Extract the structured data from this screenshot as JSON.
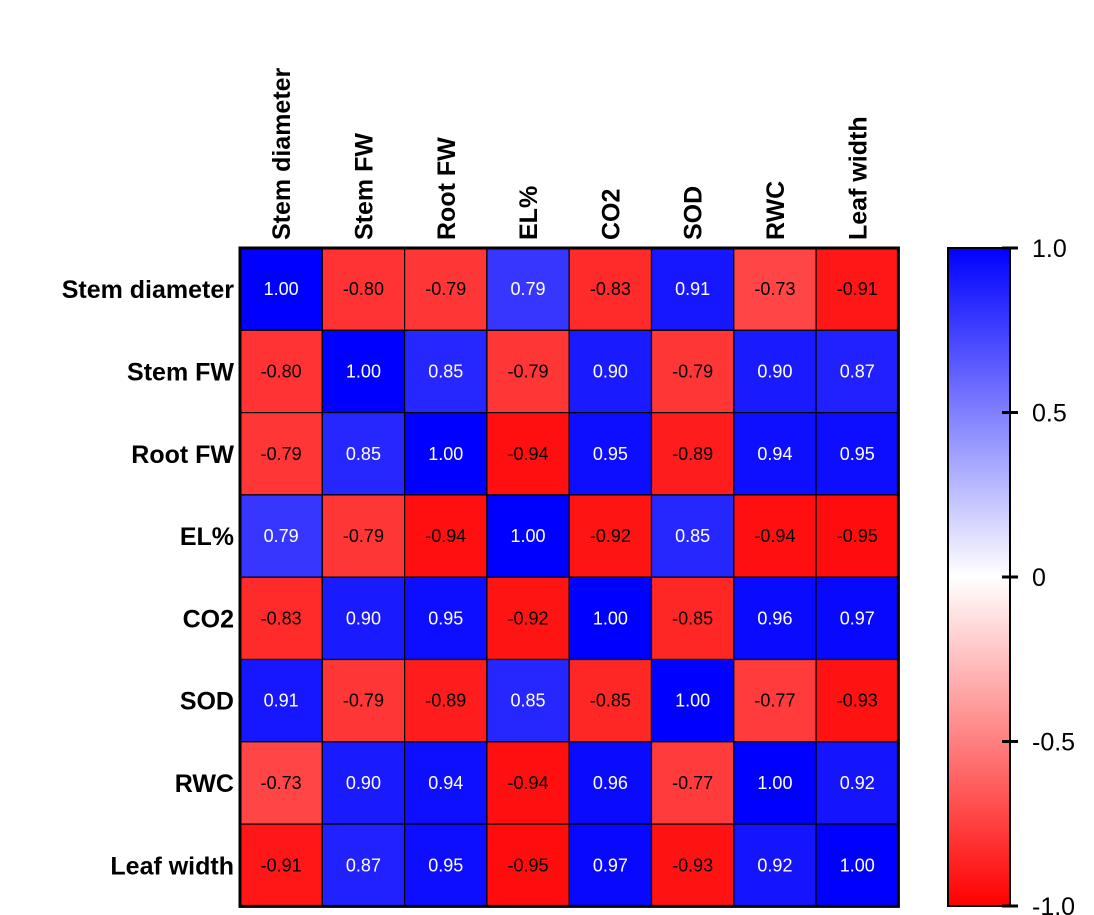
{
  "chart_data": {
    "type": "heatmap",
    "title": "",
    "xlabel": "",
    "ylabel": "",
    "row_labels": [
      "Stem diameter",
      "Stem FW",
      "Root FW",
      "EL%",
      "CO2",
      "SOD",
      "RWC",
      "Leaf width"
    ],
    "col_labels": [
      "Stem diameter",
      "Stem FW",
      "Root FW",
      "EL%",
      "CO2",
      "SOD",
      "RWC",
      "Leaf width"
    ],
    "values": [
      [
        1.0,
        -0.8,
        -0.79,
        0.79,
        -0.83,
        0.91,
        -0.73,
        -0.91
      ],
      [
        -0.8,
        1.0,
        0.85,
        -0.79,
        0.9,
        -0.79,
        0.9,
        0.87
      ],
      [
        -0.79,
        0.85,
        1.0,
        -0.94,
        0.95,
        -0.89,
        0.94,
        0.95
      ],
      [
        0.79,
        -0.79,
        -0.94,
        1.0,
        -0.92,
        0.85,
        -0.94,
        -0.95
      ],
      [
        -0.83,
        0.9,
        0.95,
        -0.92,
        1.0,
        -0.85,
        0.96,
        0.97
      ],
      [
        0.91,
        -0.79,
        -0.89,
        0.85,
        -0.85,
        1.0,
        -0.77,
        -0.93
      ],
      [
        -0.73,
        0.9,
        0.94,
        -0.94,
        0.96,
        -0.77,
        1.0,
        0.92
      ],
      [
        -0.91,
        0.87,
        0.95,
        -0.95,
        0.97,
        -0.93,
        0.92,
        1.0
      ]
    ],
    "cell_labels": [
      [
        "1.00",
        "-0.80",
        "-0.79",
        "0.79",
        "-0.83",
        "0.91",
        "-0.73",
        "-0.91"
      ],
      [
        "-0.80",
        "1.00",
        "0.85",
        "-0.79",
        "0.90",
        "-0.79",
        "0.90",
        "0.87"
      ],
      [
        "-0.79",
        "0.85",
        "1.00",
        "-0.94",
        "0.95",
        "-0.89",
        "0.94",
        "0.95"
      ],
      [
        "0.79",
        "-0.79",
        "-0.94",
        "1.00",
        "-0.92",
        "0.85",
        "-0.94",
        "-0.95"
      ],
      [
        "-0.83",
        "0.90",
        "0.95",
        "-0.92",
        "1.00",
        "-0.85",
        "0.96",
        "0.97"
      ],
      [
        "0.91",
        "-0.79",
        "-0.89",
        "0.85",
        "-0.85",
        "1.00",
        "-0.77",
        "-0.93"
      ],
      [
        "-0.73",
        "0.90",
        "0.94",
        "-0.94",
        "0.96",
        "-0.77",
        "1.00",
        "0.92"
      ],
      [
        "-0.91",
        "0.87",
        "0.95",
        "-0.95",
        "0.97",
        "-0.93",
        "0.92",
        "1.00"
      ]
    ],
    "color_scale": {
      "min": -1.0,
      "max": 1.0,
      "min_color": "#ff0000",
      "mid_color": "#ffffff",
      "max_color": "#0000ff",
      "ticks": [
        1.0,
        0.5,
        0,
        -0.5,
        -1.0
      ],
      "tick_labels": [
        "1.0",
        "0.5",
        "0",
        "-0.5",
        "-1.0"
      ]
    },
    "grid": true,
    "legend": "right"
  }
}
